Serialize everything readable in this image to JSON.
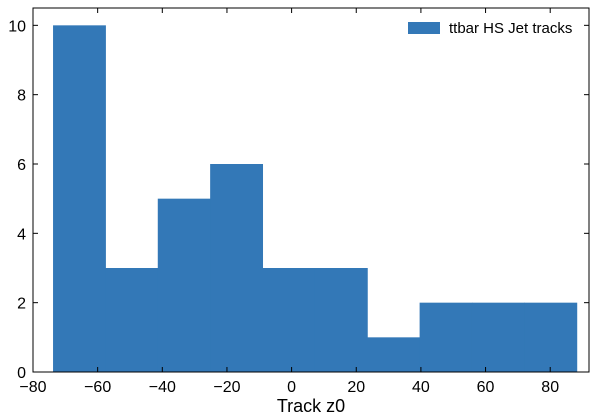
{
  "chart_data": {
    "type": "histogram",
    "series": [
      {
        "name": "ttbar HS Jet tracks",
        "bin_edges": [
          -73.8,
          -57.6,
          -41.4,
          -25.2,
          -9.0,
          7.2,
          23.4,
          39.6,
          55.8,
          72.0,
          88.2
        ],
        "counts": [
          10,
          3,
          5,
          6,
          3,
          3,
          1,
          2,
          2,
          2
        ]
      }
    ],
    "xlabel": "Track z0",
    "ylabel": "",
    "xlim": [
      -80,
      92
    ],
    "ylim": [
      0,
      10.5
    ],
    "xticks": [
      -80,
      -60,
      -40,
      -20,
      0,
      20,
      40,
      60,
      80
    ],
    "xtick_labels": [
      "−80",
      "−60",
      "−40",
      "−20",
      "0",
      "20",
      "40",
      "60",
      "80"
    ],
    "yticks": [
      0,
      2,
      4,
      6,
      8,
      10
    ],
    "ytick_labels": [
      "0",
      "2",
      "4",
      "6",
      "8",
      "10"
    ],
    "legend_position": "top-right",
    "bar_color": "#3378b7",
    "grid": false
  }
}
